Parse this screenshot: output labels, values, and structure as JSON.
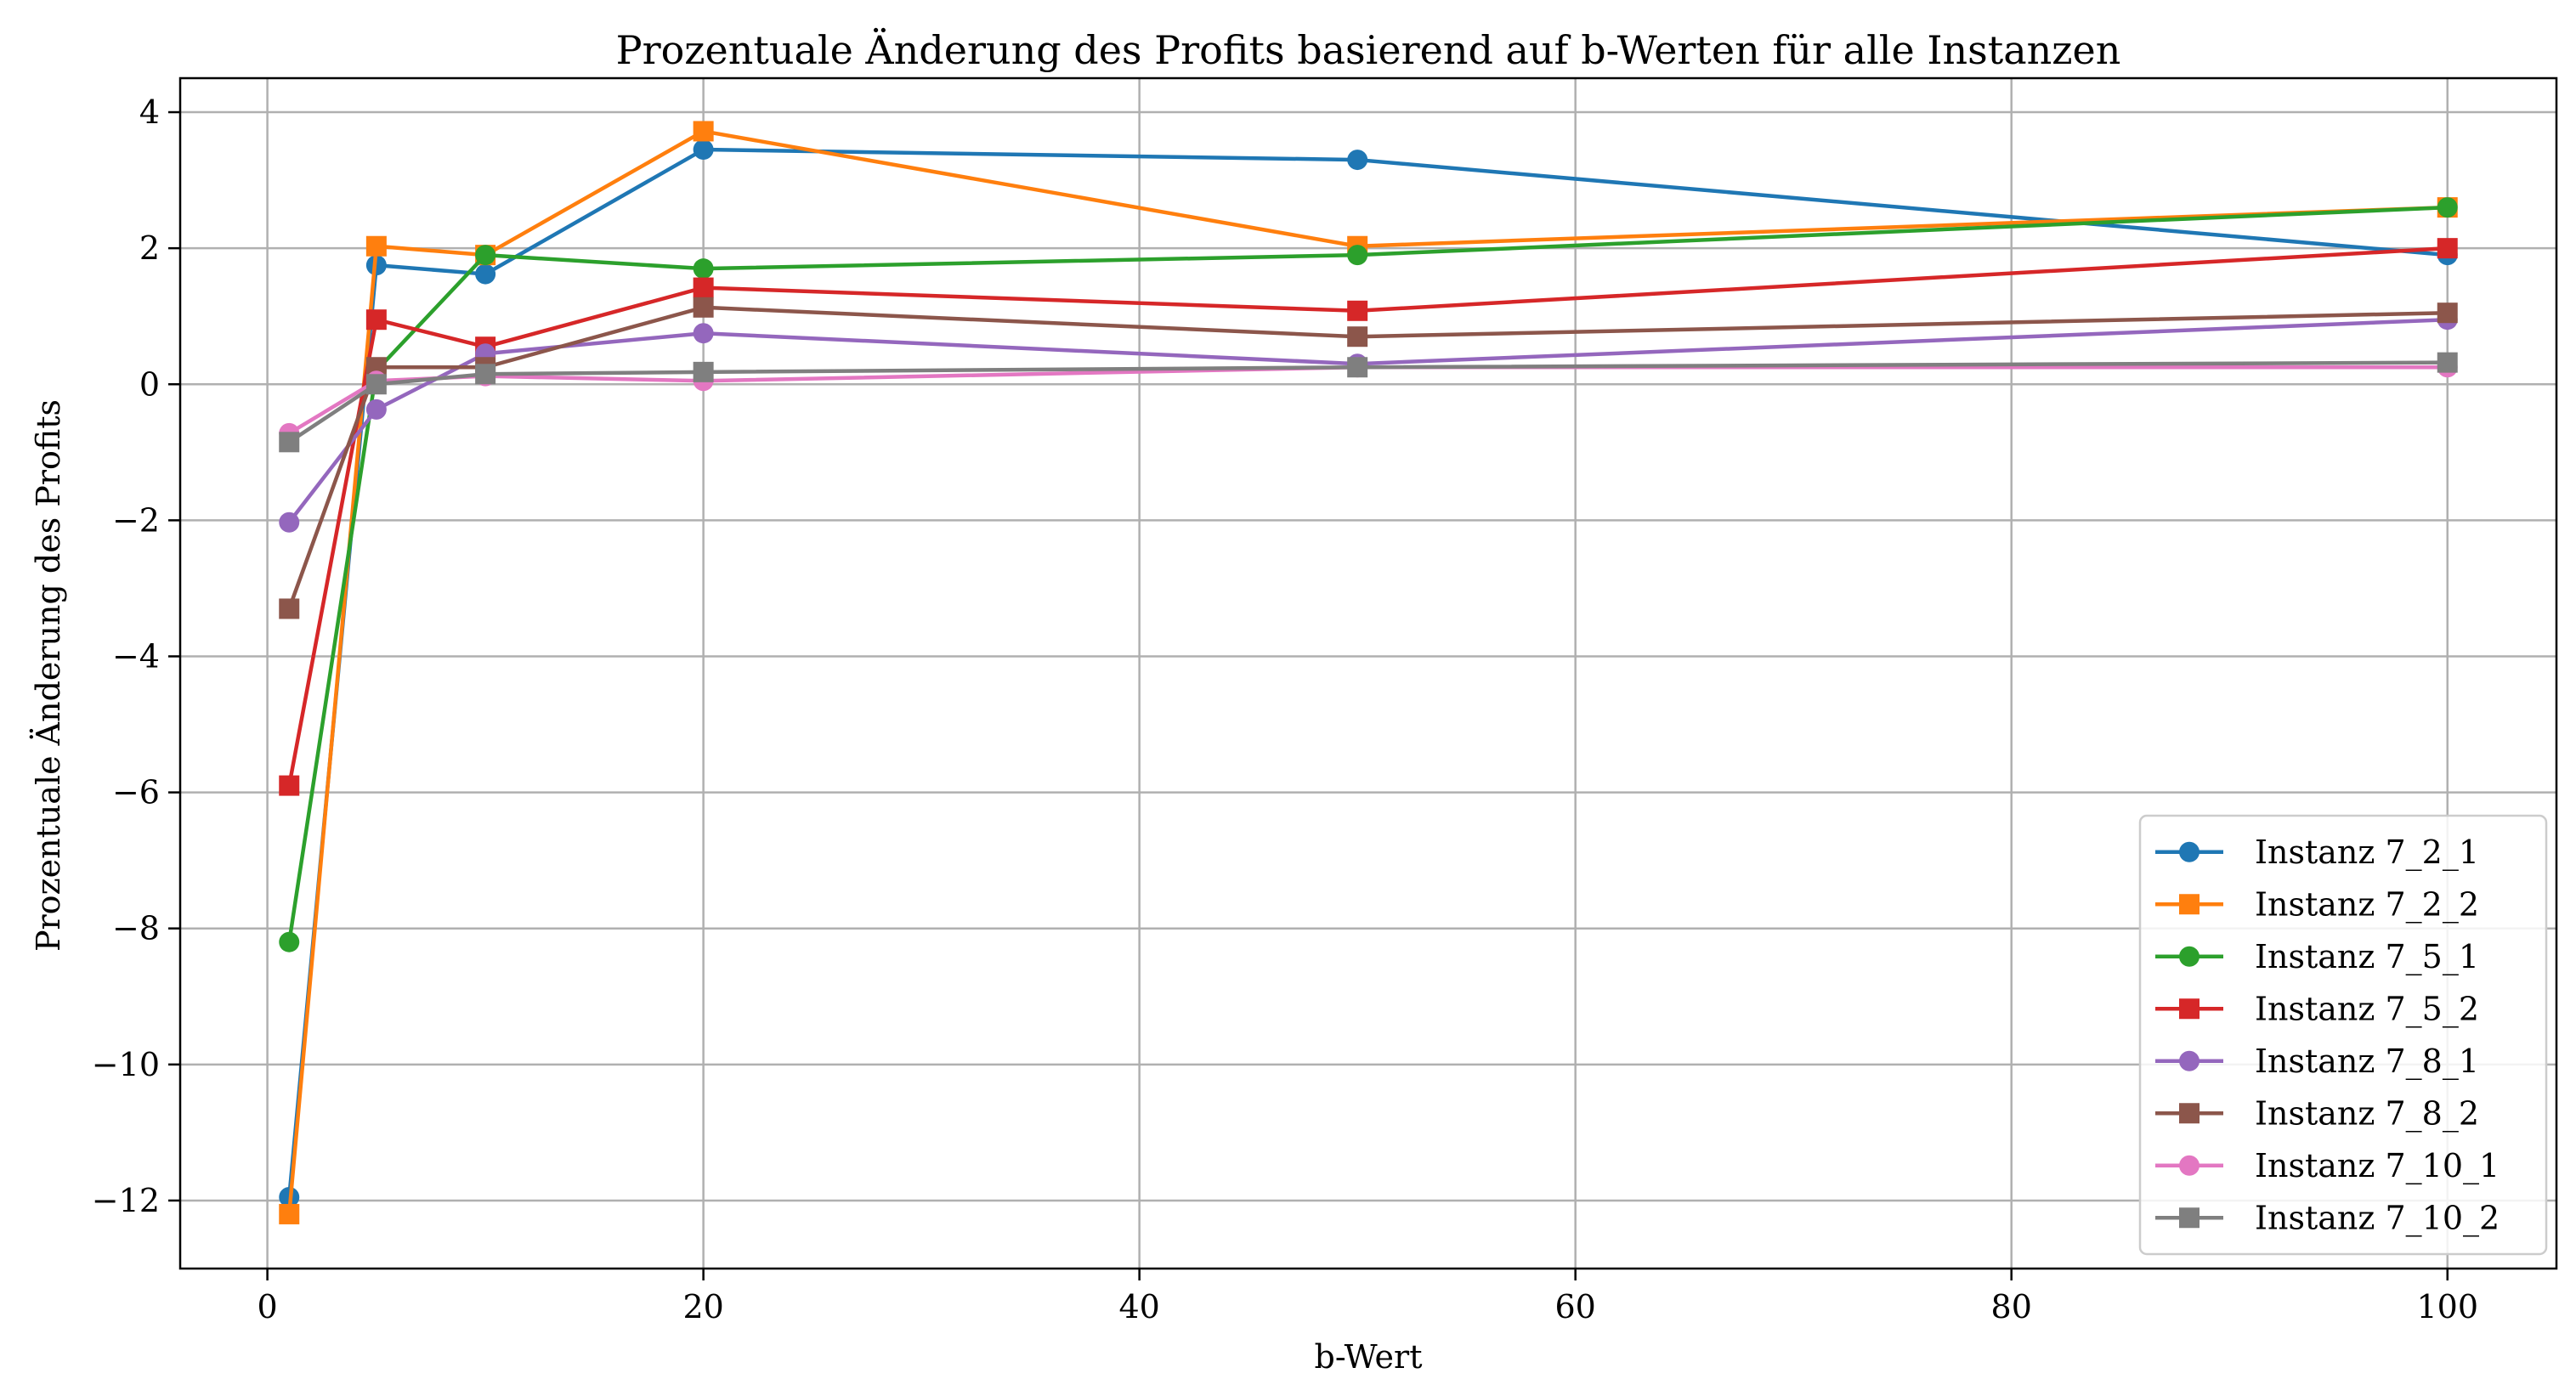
{
  "chart_data": {
    "type": "line",
    "title": "Prozentuale Änderung des Profits basierend auf b-Werten für alle Instanzen",
    "xlabel": "b-Wert",
    "ylabel": "Prozentuale Änderung des Profits",
    "xlim": [
      -4,
      105
    ],
    "ylim": [
      -13,
      4.5
    ],
    "xticks": [
      0,
      20,
      40,
      60,
      80,
      100
    ],
    "yticks": [
      -12,
      -10,
      -8,
      -6,
      -4,
      -2,
      0,
      2,
      4
    ],
    "xtick_labels": [
      "0",
      "20",
      "40",
      "60",
      "80",
      "100"
    ],
    "ytick_labels": [
      "−12",
      "−10",
      "−8",
      "−6",
      "−4",
      "−2",
      "0",
      "2",
      "4"
    ],
    "grid": true,
    "legend_position": "lower right",
    "x": [
      1,
      5,
      10,
      20,
      50,
      100
    ],
    "series": [
      {
        "name": "Instanz 7_2_1",
        "color": "#1f77b4",
        "marker": "circle",
        "values": [
          -11.95,
          1.75,
          1.62,
          3.45,
          3.3,
          1.9
        ]
      },
      {
        "name": "Instanz 7_2_2",
        "color": "#ff7f0e",
        "marker": "square",
        "values": [
          -12.2,
          2.03,
          1.9,
          3.72,
          2.03,
          2.6
        ]
      },
      {
        "name": "Instanz 7_5_1",
        "color": "#2ca02c",
        "marker": "circle",
        "values": [
          -8.2,
          0.2,
          1.9,
          1.7,
          1.9,
          2.6
        ]
      },
      {
        "name": "Instanz 7_5_2",
        "color": "#d62728",
        "marker": "square",
        "values": [
          -5.9,
          0.95,
          0.55,
          1.42,
          1.08,
          2.0
        ]
      },
      {
        "name": "Instanz 7_8_1",
        "color": "#9467bd",
        "marker": "circle",
        "values": [
          -2.03,
          -0.37,
          0.45,
          0.75,
          0.3,
          0.95
        ]
      },
      {
        "name": "Instanz 7_8_2",
        "color": "#8c564b",
        "marker": "square",
        "values": [
          -3.3,
          0.25,
          0.25,
          1.13,
          0.7,
          1.05
        ]
      },
      {
        "name": "Instanz 7_10_1",
        "color": "#e377c2",
        "marker": "circle",
        "values": [
          -0.72,
          0.05,
          0.12,
          0.05,
          0.25,
          0.25
        ]
      },
      {
        "name": "Instanz 7_10_2",
        "color": "#7f7f7f",
        "marker": "square",
        "values": [
          -0.85,
          0.0,
          0.15,
          0.18,
          0.25,
          0.32
        ]
      }
    ]
  }
}
